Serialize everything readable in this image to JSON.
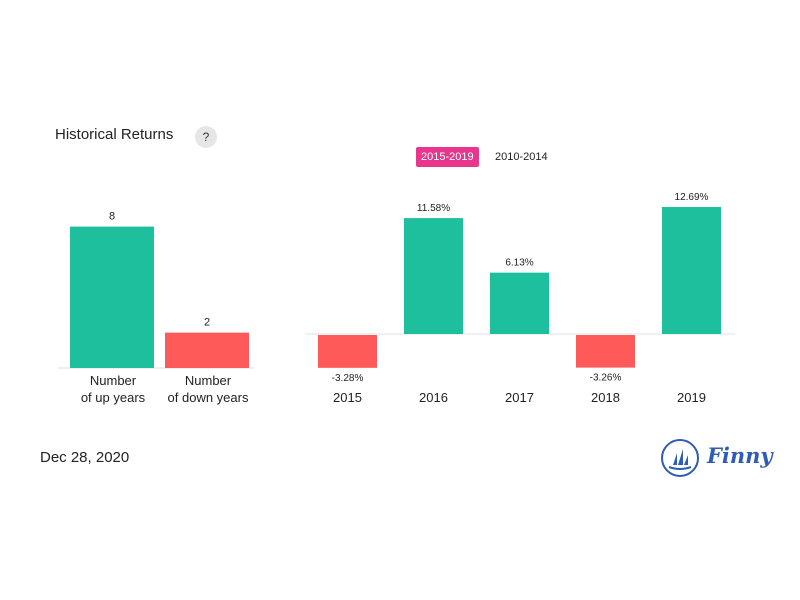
{
  "header": {
    "title": "Historical Returns",
    "help_label": "?"
  },
  "tabs": [
    {
      "label": "2015-2019",
      "active": true
    },
    {
      "label": "2010-2014",
      "active": false
    }
  ],
  "footer": {
    "date": "Dec 28, 2020",
    "brand": "Finny"
  },
  "colors": {
    "up": "#1dbf9c",
    "down": "#ff5a5a",
    "tab_active": "#e8368f",
    "brand": "#2e5db3"
  },
  "chart_data": [
    {
      "type": "bar",
      "categories": [
        "Number of up years",
        "Number of down years"
      ],
      "category_lines": [
        [
          "Number",
          "of up years"
        ],
        [
          "Number",
          "of down years"
        ]
      ],
      "values": [
        8,
        2
      ],
      "value_labels": [
        "8",
        "2"
      ],
      "ylim": [
        0,
        8.6
      ]
    },
    {
      "type": "bar",
      "categories": [
        "2015",
        "2016",
        "2017",
        "2018",
        "2019"
      ],
      "values": [
        -3.28,
        11.58,
        6.13,
        -3.26,
        12.69
      ],
      "value_labels": [
        "-3.28%",
        "11.58%",
        "6.13%",
        "-3.26%",
        "12.69%"
      ],
      "ylim": [
        -5,
        14
      ]
    }
  ]
}
